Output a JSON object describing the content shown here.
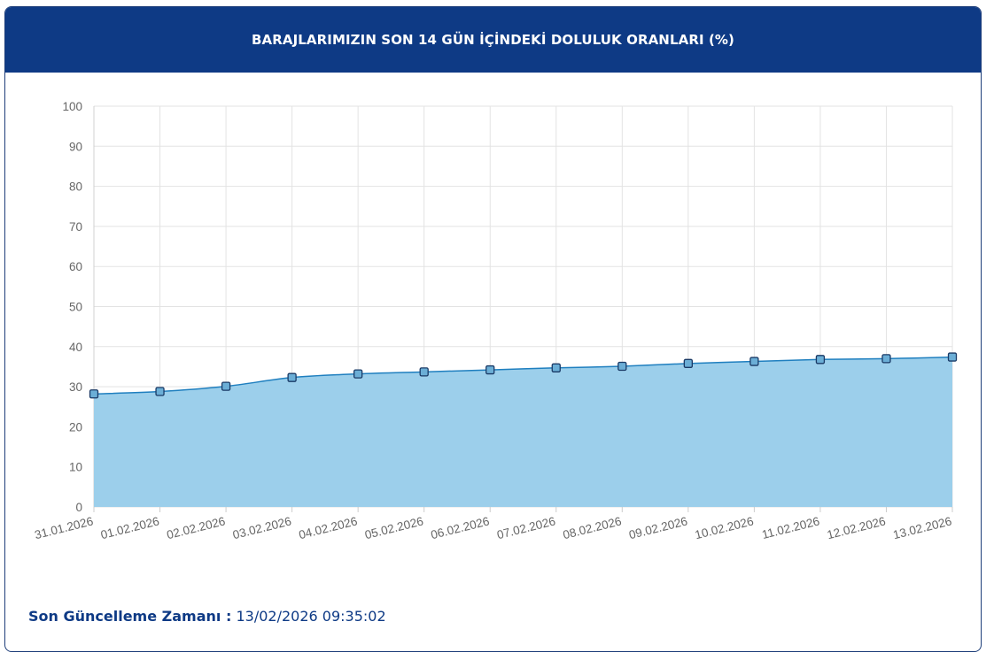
{
  "header": {
    "title": "BARAJLARIMIZIN SON 14 GÜN İÇİNDEKİ DOLULUK ORANLARI (%)"
  },
  "footer": {
    "label": "Son Güncelleme Zamanı :",
    "value": "13/02/2026 09:35:02"
  },
  "colors": {
    "header_bg": "#0e3a85",
    "area_fill": "#9ccfeb",
    "line": "#1f7fbf",
    "marker_fill": "#6baed6",
    "marker_stroke": "#1a3a66",
    "grid": "#e3e3e3"
  },
  "chart_data": {
    "type": "area",
    "title": "BARAJLARIMIZIN SON 14 GÜN İÇİNDEKİ DOLULUK ORANLARI (%)",
    "xlabel": "",
    "ylabel": "",
    "ylim": [
      0,
      100
    ],
    "yticks": [
      0,
      10,
      20,
      30,
      40,
      50,
      60,
      70,
      80,
      90,
      100
    ],
    "grid": true,
    "legend": "none",
    "categories": [
      "31.01.2026",
      "01.02.2026",
      "02.02.2026",
      "03.02.2026",
      "04.02.2026",
      "05.02.2026",
      "06.02.2026",
      "07.02.2026",
      "08.02.2026",
      "09.02.2026",
      "10.02.2026",
      "11.02.2026",
      "12.02.2026",
      "13.02.2026"
    ],
    "values": [
      28.2,
      28.8,
      30.1,
      32.3,
      33.2,
      33.7,
      34.2,
      34.7,
      35.1,
      35.8,
      36.3,
      36.8,
      37.0,
      37.4
    ]
  }
}
